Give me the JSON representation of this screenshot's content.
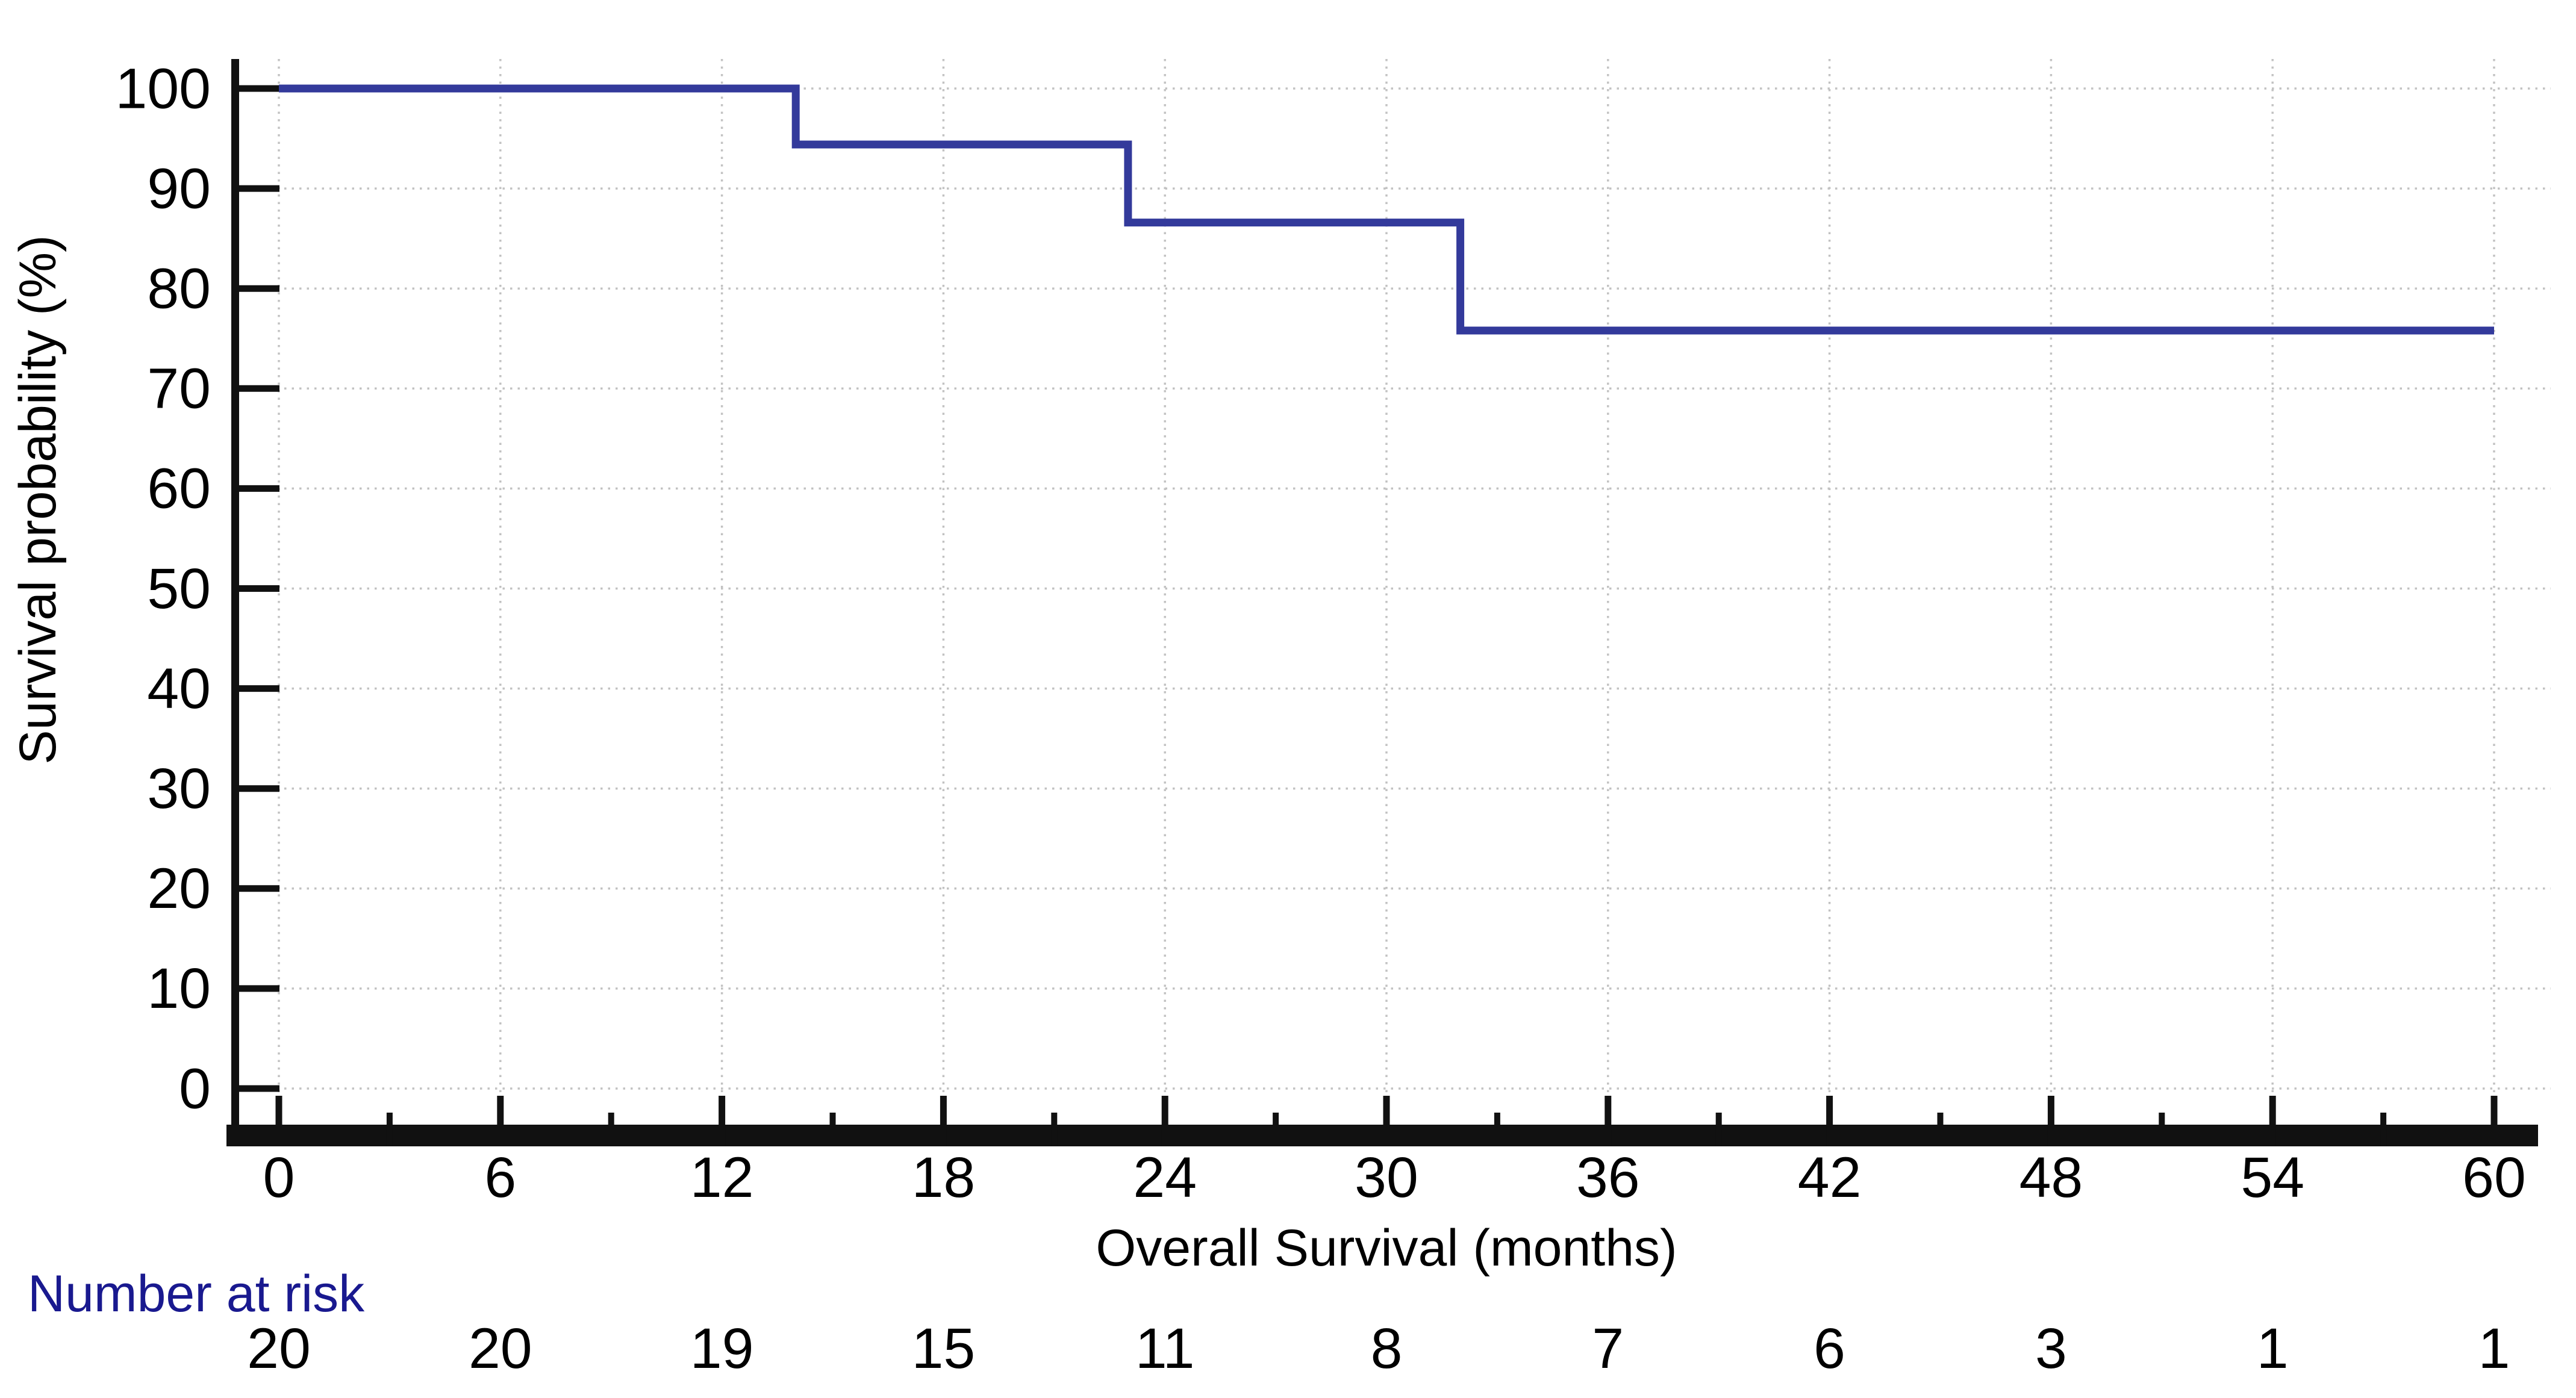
{
  "chart_data": {
    "type": "line",
    "subtype": "kaplan_meier_step",
    "title": "",
    "xlabel": "Overall Survival (months)",
    "ylabel": "Survival probability (%)",
    "xlim": [
      0,
      60
    ],
    "ylim": [
      0,
      100
    ],
    "grid": {
      "show": true,
      "style": "dotted",
      "vertical_every_months": 6,
      "horizontal_every_pct": 10
    },
    "legend": {
      "show": false
    },
    "x_ticks": [
      0,
      6,
      12,
      18,
      24,
      30,
      36,
      42,
      48,
      54,
      60
    ],
    "x_minor_ticks": [
      3,
      9,
      15,
      21,
      27,
      33,
      39,
      45,
      51,
      57
    ],
    "y_ticks": [
      100,
      90,
      80,
      70,
      60,
      50,
      40,
      30,
      20,
      10,
      0
    ],
    "series": [
      {
        "name": "overall-survival",
        "color": "#333A9B",
        "step_points": [
          {
            "month": 0,
            "survival_pct": 100
          },
          {
            "month": 14,
            "survival_pct": 100
          },
          {
            "month": 14,
            "survival_pct": 94.4
          },
          {
            "month": 23,
            "survival_pct": 94.4
          },
          {
            "month": 23,
            "survival_pct": 86.6
          },
          {
            "month": 32,
            "survival_pct": 86.6
          },
          {
            "month": 32,
            "survival_pct": 75.8
          },
          {
            "month": 60,
            "survival_pct": 75.8
          }
        ],
        "drop_events": [
          {
            "month": 14,
            "survival_pct": 94.4
          },
          {
            "month": 23,
            "survival_pct": 86.6
          },
          {
            "month": 32,
            "survival_pct": 75.8
          }
        ]
      }
    ],
    "number_at_risk": {
      "label": "Number at risk",
      "label_color": "#19198F",
      "months": [
        0,
        6,
        12,
        18,
        24,
        30,
        36,
        42,
        48,
        54,
        60
      ],
      "counts": [
        20,
        20,
        19,
        15,
        11,
        8,
        7,
        6,
        3,
        1,
        1
      ]
    },
    "colors": {
      "curve": "#333A9B",
      "axis": "#111111",
      "grid": "#c2c2c2",
      "text": "#000000",
      "background": "#ffffff"
    }
  }
}
